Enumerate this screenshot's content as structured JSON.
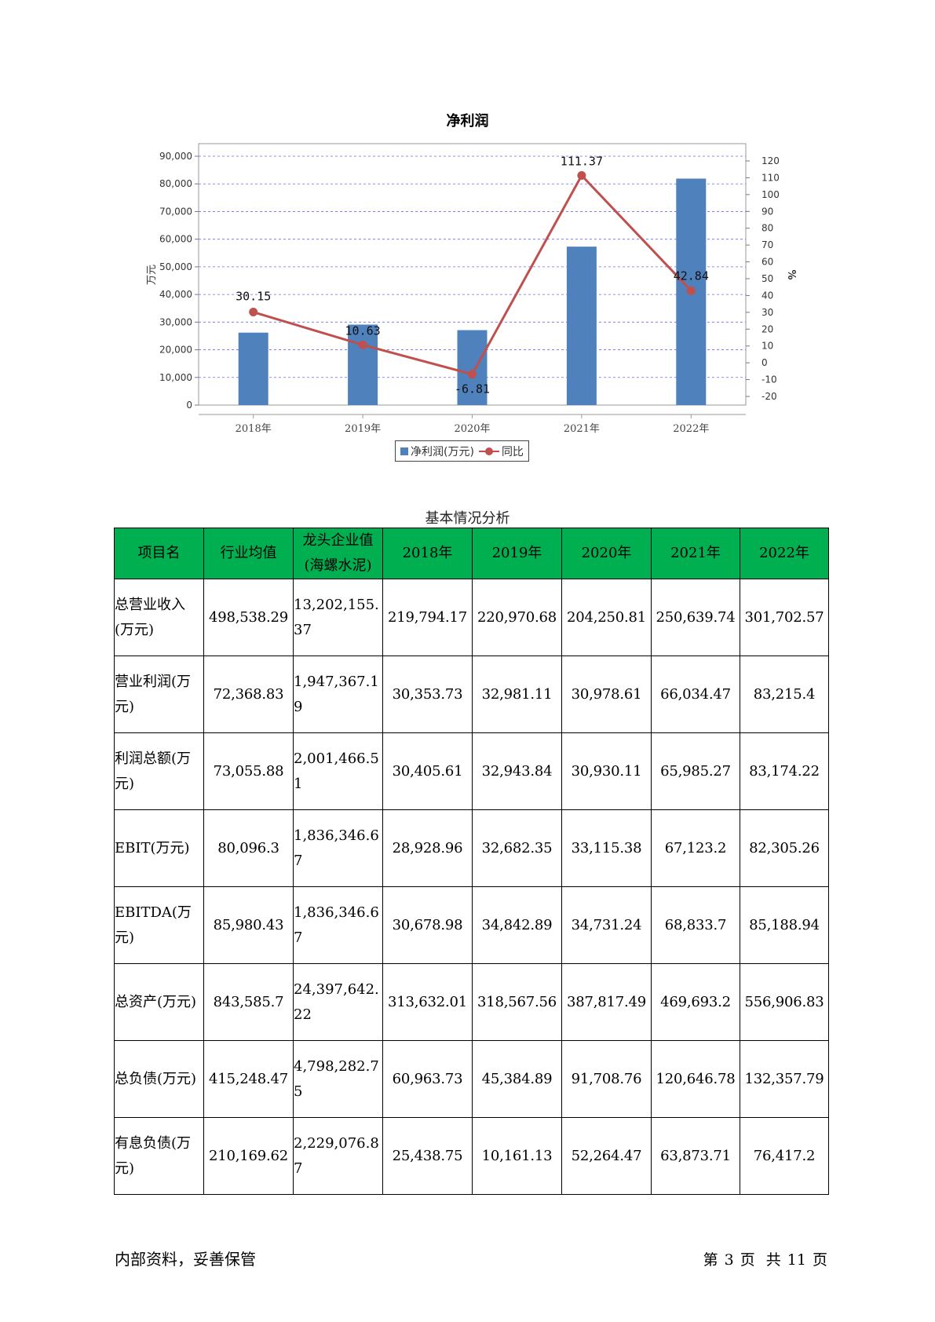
{
  "chart_data": {
    "type": "bar",
    "title": "净利润",
    "categories": [
      "2018年",
      "2019年",
      "2020年",
      "2021年",
      "2022年"
    ],
    "series": [
      {
        "name": "净利润(万元)",
        "type": "bar",
        "axis": "left",
        "values": [
          26200,
          29100,
          27100,
          57300,
          81900
        ]
      },
      {
        "name": "同比",
        "type": "line",
        "axis": "right",
        "values": [
          30.15,
          10.63,
          -6.81,
          111.37,
          42.84
        ]
      }
    ],
    "ylabel": "万元",
    "ylabel_right": "%",
    "ylim": [
      0,
      90000
    ],
    "ylim_right": [
      -20,
      120
    ],
    "y_ticks": [
      "0",
      "10,000",
      "20,000",
      "30,000",
      "40,000",
      "50,000",
      "60,000",
      "70,000",
      "80,000",
      "90,000"
    ],
    "y_right_ticks": [
      "-20",
      "-10",
      "0",
      "10",
      "20",
      "30",
      "40",
      "50",
      "60",
      "70",
      "80",
      "90",
      "100",
      "110",
      "120"
    ],
    "data_labels": [
      "30.15",
      "10.63",
      "-6.81",
      "111.37",
      "42.84"
    ],
    "grid": true,
    "legend_position": "bottom",
    "colors": {
      "bar": "#4f81bd",
      "line": "#c0504d",
      "grid": "#6a6aff"
    }
  },
  "table": {
    "caption": "基本情况分析",
    "headers": [
      "项目名",
      "行业均值",
      "龙头企业值(海螺水泥)",
      "2018年",
      "2019年",
      "2020年",
      "2021年",
      "2022年"
    ],
    "header_color": "#00b050",
    "rows": [
      {
        "name": "总营业收入(万元)",
        "avg": "498,538.29",
        "leader": "13,202,155.37",
        "y2018": "219,794.17",
        "y2019": "220,970.68",
        "y2020": "204,250.81",
        "y2021": "250,639.74",
        "y2022": "301,702.57"
      },
      {
        "name": "营业利润(万元)",
        "avg": "72,368.83",
        "leader": "1,947,367.19",
        "y2018": "30,353.73",
        "y2019": "32,981.11",
        "y2020": "30,978.61",
        "y2021": "66,034.47",
        "y2022": "83,215.4"
      },
      {
        "name": "利润总额(万元)",
        "avg": "73,055.88",
        "leader": "2,001,466.51",
        "y2018": "30,405.61",
        "y2019": "32,943.84",
        "y2020": "30,930.11",
        "y2021": "65,985.27",
        "y2022": "83,174.22"
      },
      {
        "name": "EBIT(万元)",
        "avg": "80,096.3",
        "leader": "1,836,346.67",
        "y2018": "28,928.96",
        "y2019": "32,682.35",
        "y2020": "33,115.38",
        "y2021": "67,123.2",
        "y2022": "82,305.26"
      },
      {
        "name": "EBITDA(万元)",
        "avg": "85,980.43",
        "leader": "1,836,346.67",
        "y2018": "30,678.98",
        "y2019": "34,842.89",
        "y2020": "34,731.24",
        "y2021": "68,833.7",
        "y2022": "85,188.94"
      },
      {
        "name": "总资产(万元)",
        "avg": "843,585.7",
        "leader": "24,397,642.22",
        "y2018": "313,632.01",
        "y2019": "318,567.56",
        "y2020": "387,817.49",
        "y2021": "469,693.2",
        "y2022": "556,906.83"
      },
      {
        "name": "总负债(万元)",
        "avg": "415,248.47",
        "leader": "4,798,282.75",
        "y2018": "60,963.73",
        "y2019": "45,384.89",
        "y2020": "91,708.76",
        "y2021": "120,646.78",
        "y2022": "132,357.79"
      },
      {
        "name": "有息负债(万元)",
        "avg": "210,169.62",
        "leader": "2,229,076.87",
        "y2018": "25,438.75",
        "y2019": "10,161.13",
        "y2020": "52,264.47",
        "y2021": "63,873.71",
        "y2022": "76,417.2"
      }
    ]
  },
  "footer": {
    "left": "内部资料，妥善保管",
    "page_prefix": "第",
    "page_num": "3",
    "page_unit": "页",
    "total_prefix": "共",
    "total_num": "11",
    "total_unit": "页"
  }
}
